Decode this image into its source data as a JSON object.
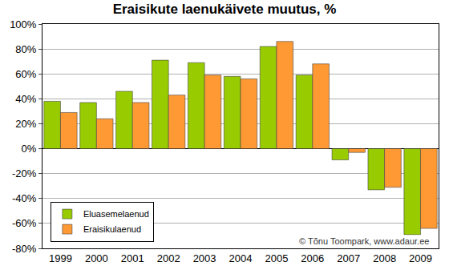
{
  "chart_data": {
    "type": "bar",
    "title": "Eraisikute laenukäivete muutus, %",
    "categories": [
      "1999",
      "2000",
      "2001",
      "2002",
      "2003",
      "2004",
      "2005",
      "2006",
      "2007",
      "2008",
      "2009"
    ],
    "series": [
      {
        "name": "Eluasemelaenud",
        "color": "#99cc00",
        "values": [
          38,
          37,
          46,
          71,
          69,
          58,
          82,
          59,
          -9,
          -33,
          -69
        ]
      },
      {
        "name": "Eraisikulaenud",
        "color": "#ff9933",
        "values": [
          29,
          24,
          37,
          43,
          59,
          56,
          86,
          68,
          -3,
          -31,
          -64
        ]
      }
    ],
    "ylim": [
      -80,
      100
    ],
    "yticks": [
      {
        "value": -80,
        "label": "-80%"
      },
      {
        "value": -60,
        "label": "-60%"
      },
      {
        "value": -40,
        "label": "-40%"
      },
      {
        "value": -20,
        "label": "-20%"
      },
      {
        "value": 0,
        "label": "0%"
      },
      {
        "value": 20,
        "label": "20%"
      },
      {
        "value": 40,
        "label": "40%"
      },
      {
        "value": 60,
        "label": "60%"
      },
      {
        "value": 80,
        "label": "80%"
      },
      {
        "value": 100,
        "label": "100%"
      }
    ],
    "grid": true,
    "legend": "lower left",
    "annotations": [
      "© Tõnu Toompark, www.adaur.ee"
    ]
  }
}
